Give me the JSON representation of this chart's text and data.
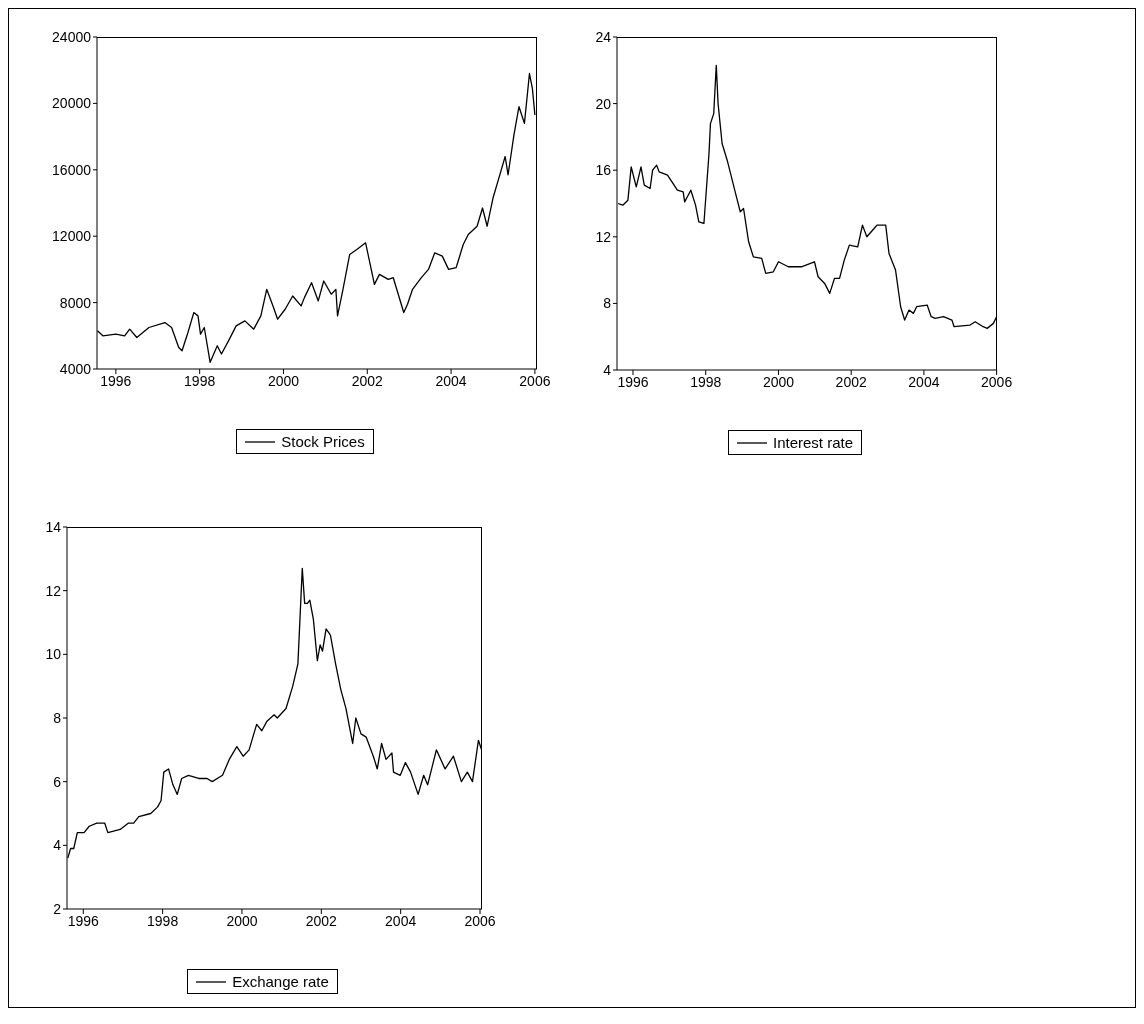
{
  "chart_data": [
    {
      "type": "line",
      "xlim": [
        1995.55,
        2006.05
      ],
      "xticks": [
        1996,
        1998,
        2000,
        2002,
        2004,
        2006
      ],
      "ylim": [
        4000,
        24000
      ],
      "yticks": [
        4000,
        8000,
        12000,
        16000,
        20000,
        24000
      ],
      "legend": "bottom",
      "x": [
        1995.56,
        1995.69,
        1996.0,
        1996.21,
        1996.33,
        1996.5,
        1996.79,
        1997.17,
        1997.33,
        1997.5,
        1997.58,
        1997.72,
        1997.86,
        1997.96,
        1998.02,
        1998.11,
        1998.25,
        1998.42,
        1998.52,
        1998.71,
        1998.87,
        1999.08,
        1999.29,
        1999.46,
        1999.6,
        1999.75,
        1999.86,
        2000.04,
        2000.22,
        2000.42,
        2000.5,
        2000.67,
        2000.83,
        2000.96,
        2001.14,
        2001.25,
        2001.29,
        2001.42,
        2001.58,
        2001.75,
        2001.96,
        2002.17,
        2002.29,
        2002.5,
        2002.62,
        2002.87,
        2002.96,
        2003.08,
        2003.29,
        2003.46,
        2003.61,
        2003.79,
        2003.94,
        2004.12,
        2004.29,
        2004.41,
        2004.62,
        2004.75,
        2004.86,
        2005.0,
        2005.14,
        2005.29,
        2005.36,
        2005.5,
        2005.62,
        2005.75,
        2005.87,
        2005.94,
        2006.0
      ],
      "series": [
        {
          "name": "Stock Prices",
          "color": "#000000",
          "values": [
            6300,
            6000,
            6100,
            6000,
            6400,
            5900,
            6500,
            6800,
            6500,
            5300,
            5100,
            6200,
            7400,
            7200,
            6100,
            6500,
            4400,
            5400,
            4900,
            5800,
            6600,
            6900,
            6400,
            7200,
            8800,
            7800,
            7000,
            7600,
            8400,
            7800,
            8300,
            9200,
            8100,
            9300,
            8500,
            8800,
            7200,
            8800,
            10900,
            11200,
            11600,
            9100,
            9700,
            9400,
            9500,
            7400,
            7900,
            8800,
            9500,
            10000,
            11000,
            10800,
            10000,
            10100,
            11500,
            12100,
            12600,
            13700,
            12600,
            14300,
            15500,
            16800,
            15700,
            18100,
            19800,
            18800,
            21800,
            20900,
            19300
          ]
        }
      ]
    },
    {
      "type": "line",
      "xlim": [
        1995.56,
        2006.01
      ],
      "xticks": [
        1996,
        1998,
        2000,
        2002,
        2004,
        2006
      ],
      "ylim": [
        4,
        24
      ],
      "yticks": [
        4,
        8,
        12,
        16,
        20,
        24
      ],
      "legend": "bottom",
      "x": [
        1995.59,
        1995.72,
        1995.86,
        1995.95,
        1996.09,
        1996.22,
        1996.31,
        1996.47,
        1996.54,
        1996.65,
        1996.72,
        1996.95,
        1997.22,
        1997.38,
        1997.42,
        1997.59,
        1997.72,
        1997.81,
        1997.95,
        1998.09,
        1998.13,
        1998.22,
        1998.29,
        1998.34,
        1998.45,
        1998.59,
        1998.81,
        1998.95,
        1999.04,
        1999.18,
        1999.31,
        1999.54,
        1999.65,
        1999.86,
        2000.0,
        2000.27,
        2000.63,
        2000.99,
        2001.09,
        2001.27,
        2001.41,
        2001.54,
        2001.68,
        2001.81,
        2001.95,
        2002.18,
        2002.31,
        2002.43,
        2002.63,
        2002.71,
        2002.95,
        2003.04,
        2003.22,
        2003.36,
        2003.47,
        2003.59,
        2003.71,
        2003.8,
        2004.09,
        2004.2,
        2004.31,
        2004.54,
        2004.77,
        2004.83,
        2005.27,
        2005.41,
        2005.63,
        2005.74,
        2005.91,
        2006.0
      ],
      "series": [
        {
          "name": "Interest rate",
          "color": "#000000",
          "values": [
            14.0,
            13.9,
            14.2,
            16.2,
            15.0,
            16.2,
            15.1,
            14.9,
            16.0,
            16.3,
            15.9,
            15.7,
            14.8,
            14.7,
            14.1,
            14.8,
            13.9,
            12.9,
            12.8,
            17.0,
            18.8,
            19.4,
            22.3,
            20.0,
            17.6,
            16.6,
            14.7,
            13.5,
            13.7,
            11.7,
            10.8,
            10.7,
            9.8,
            9.9,
            10.5,
            10.2,
            10.2,
            10.5,
            9.6,
            9.2,
            8.6,
            9.5,
            9.5,
            10.6,
            11.5,
            11.4,
            12.7,
            12.0,
            12.5,
            12.7,
            12.7,
            11.0,
            10.0,
            7.8,
            7.0,
            7.6,
            7.4,
            7.8,
            7.9,
            7.2,
            7.1,
            7.2,
            7.0,
            6.6,
            6.7,
            6.9,
            6.6,
            6.5,
            6.8,
            7.2
          ]
        }
      ]
    },
    {
      "type": "line",
      "xlim": [
        1995.59,
        2006.05
      ],
      "xticks": [
        1996,
        1998,
        2000,
        2002,
        2004,
        2006
      ],
      "ylim": [
        2,
        14
      ],
      "yticks": [
        2,
        4,
        6,
        8,
        10,
        12,
        14
      ],
      "legend": "bottom",
      "x": [
        1995.61,
        1995.68,
        1995.76,
        1995.85,
        1996.02,
        1996.15,
        1996.34,
        1996.54,
        1996.62,
        1996.93,
        1997.14,
        1997.27,
        1997.4,
        1997.7,
        1997.87,
        1997.96,
        1998.03,
        1998.15,
        1998.26,
        1998.37,
        1998.48,
        1998.65,
        1998.91,
        1999.12,
        1999.25,
        1999.51,
        1999.68,
        1999.87,
        2000.03,
        2000.18,
        2000.37,
        2000.5,
        2000.63,
        2000.81,
        2000.89,
        2001.11,
        2001.28,
        2001.41,
        2001.52,
        2001.58,
        2001.65,
        2001.71,
        2001.8,
        2001.9,
        2001.97,
        2002.03,
        2002.12,
        2002.23,
        2002.36,
        2002.49,
        2002.62,
        2002.79,
        2002.87,
        2003.0,
        2003.13,
        2003.31,
        2003.41,
        2003.52,
        2003.63,
        2003.78,
        2003.82,
        2003.99,
        2004.12,
        2004.25,
        2004.44,
        2004.58,
        2004.68,
        2004.9,
        2005.12,
        2005.33,
        2005.53,
        2005.68,
        2005.81,
        2005.96,
        2006.04
      ],
      "series": [
        {
          "name": "Exchange rate",
          "color": "#000000",
          "values": [
            3.6,
            3.9,
            3.9,
            4.4,
            4.4,
            4.6,
            4.7,
            4.7,
            4.4,
            4.5,
            4.7,
            4.7,
            4.9,
            5.0,
            5.2,
            5.4,
            6.3,
            6.4,
            5.9,
            5.6,
            6.1,
            6.2,
            6.1,
            6.1,
            6.0,
            6.2,
            6.7,
            7.1,
            6.8,
            7.0,
            7.8,
            7.6,
            7.9,
            8.1,
            8.0,
            8.3,
            9.0,
            9.7,
            12.7,
            11.6,
            11.6,
            11.7,
            11.1,
            9.8,
            10.3,
            10.1,
            10.8,
            10.6,
            9.7,
            8.9,
            8.3,
            7.2,
            8.0,
            7.5,
            7.4,
            6.8,
            6.4,
            7.2,
            6.7,
            6.9,
            6.3,
            6.2,
            6.6,
            6.3,
            5.6,
            6.2,
            5.9,
            7.0,
            6.4,
            6.8,
            6.0,
            6.3,
            6.0,
            7.3,
            7.0
          ]
        }
      ]
    }
  ]
}
